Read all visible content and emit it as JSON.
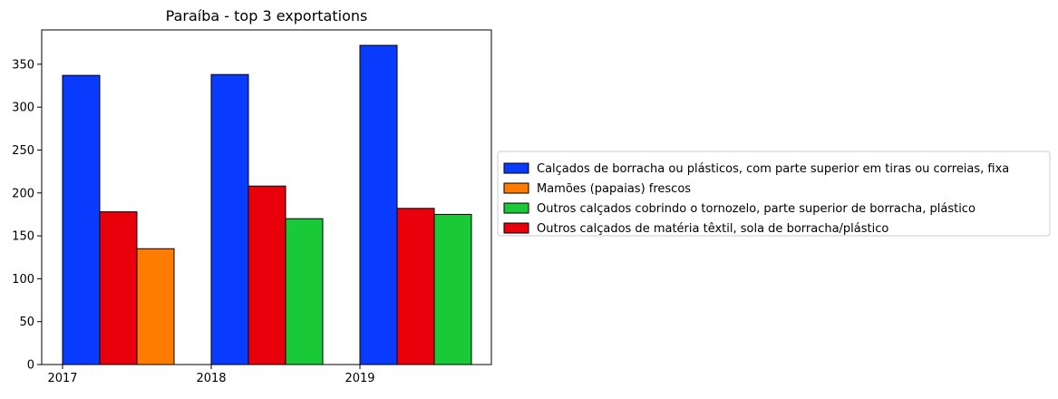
{
  "chart_data": {
    "type": "bar",
    "title": "Paraíba - top 3 exportations",
    "xlabel": "",
    "ylabel": "",
    "ylim": [
      0,
      390
    ],
    "yticks": [
      0,
      50,
      100,
      150,
      200,
      250,
      300,
      350
    ],
    "xticks": [
      "2017",
      "2018",
      "2019"
    ],
    "grid": false,
    "legend_position": "center-right outside plot",
    "series": [
      {
        "name": "Calçados de borracha ou plásticos, com parte superior em tiras ou correias, fixa",
        "color": "#0a3cff",
        "points": [
          {
            "year": "2017",
            "value": 337
          },
          {
            "year": "2018",
            "value": 338
          },
          {
            "year": "2019",
            "value": 372
          }
        ]
      },
      {
        "name": "Mamões (papaias) frescos",
        "color": "#ff7c00",
        "points": [
          {
            "year": "2017",
            "value": 135
          }
        ]
      },
      {
        "name": "Outros calçados cobrindo o tornozelo, parte superior de borracha, plástico",
        "color": "#1ac938",
        "points": [
          {
            "year": "2018",
            "value": 170
          },
          {
            "year": "2019",
            "value": 175
          }
        ]
      },
      {
        "name": "Outros calçados de matéria têxtil, sola de borracha/plástico",
        "color": "#e8000b",
        "points": [
          {
            "year": "2017",
            "value": 178
          },
          {
            "year": "2018",
            "value": 208
          },
          {
            "year": "2019",
            "value": 182
          }
        ]
      }
    ],
    "bar_order": [
      {
        "year": "2017",
        "bars": [
          "Calçados de borracha ou plásticos, com parte superior em tiras ou correias, fixa",
          "Outros calçados de matéria têxtil, sola de borracha/plástico",
          "Mamões (papaias) frescos"
        ]
      },
      {
        "year": "2018",
        "bars": [
          "Calçados de borracha ou plásticos, com parte superior em tiras ou correias, fixa",
          "Outros calçados de matéria têxtil, sola de borracha/plástico",
          "Outros calçados cobrindo o tornozelo, parte superior de borracha, plástico"
        ]
      },
      {
        "year": "2019",
        "bars": [
          "Calçados de borracha ou plásticos, com parte superior em tiras ou correias, fixa",
          "Outros calçados de matéria têxtil, sola de borracha/plástico",
          "Outros calçados cobrindo o tornozelo, parte superior de borracha, plástico"
        ]
      }
    ]
  }
}
